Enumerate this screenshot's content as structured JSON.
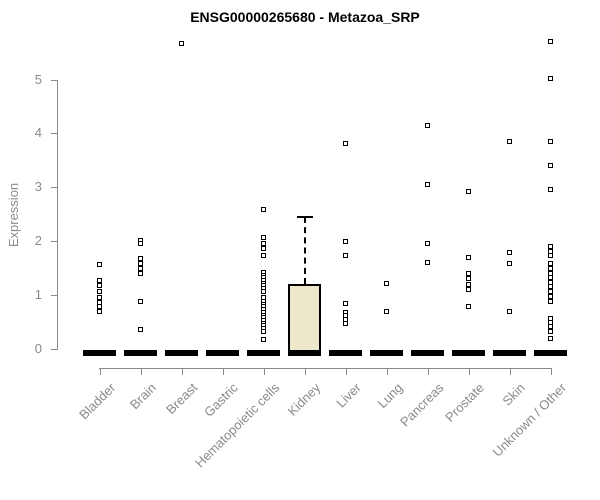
{
  "chart_data": {
    "type": "boxplot",
    "title": "ENSG00000265680 - Metazoa_SRP",
    "ylabel": "Expression",
    "xlabel": "",
    "ylim": [
      0,
      5.9
    ],
    "yticks": [
      0,
      1,
      2,
      3,
      4,
      5
    ],
    "grid": false,
    "legend": "none",
    "axis_color": "#8a8a8a",
    "box_fill_color": "#EDE7CB",
    "box_border_color": "#000000",
    "point_style": "open-square",
    "point_color": "#000000",
    "categories": [
      "Bladder",
      "Brain",
      "Breast",
      "Gastric",
      "Hematopoietic cells",
      "Kidney",
      "Liver",
      "Lung",
      "Pancreas",
      "Prostate",
      "Skin",
      "Unknown / Other"
    ],
    "series": [
      {
        "name": "Bladder",
        "box": {
          "q1": 0,
          "median": 0,
          "q3": 0
        },
        "points": [
          1.56,
          1.27,
          1.17,
          1.07,
          0.95,
          0.87,
          0.78,
          0.69
        ]
      },
      {
        "name": "Brain",
        "box": {
          "q1": 0,
          "median": 0,
          "q3": 0
        },
        "points": [
          2.02,
          1.95,
          1.68,
          1.59,
          1.5,
          1.41,
          0.88,
          0.36
        ]
      },
      {
        "name": "Breast",
        "box": {
          "q1": 0,
          "median": 0,
          "q3": 0
        },
        "points": [
          5.67
        ]
      },
      {
        "name": "Gastric",
        "box": {
          "q1": 0,
          "median": 0,
          "q3": 0
        },
        "points": []
      },
      {
        "name": "Hematopoietic cells",
        "box": {
          "q1": 0,
          "median": 0,
          "q3": 0
        },
        "points": [
          2.58,
          2.07,
          1.96,
          1.86,
          1.73,
          1.42,
          1.37,
          1.32,
          1.27,
          1.22,
          1.17,
          1.12,
          1.07,
          0.95,
          0.88,
          0.83,
          0.78,
          0.73,
          0.68,
          0.63,
          0.58,
          0.53,
          0.48,
          0.43,
          0.38,
          0.33,
          0.17
        ]
      },
      {
        "name": "Kidney",
        "box": {
          "q1": 0,
          "median": 0,
          "q3": 1.2,
          "whisker_high": 2.45,
          "whisker_style": "dashed"
        },
        "points": []
      },
      {
        "name": "Liver",
        "box": {
          "q1": 0,
          "median": 0,
          "q3": 0
        },
        "points": [
          3.81,
          1.99,
          1.74,
          0.84,
          0.68,
          0.62,
          0.55,
          0.48
        ]
      },
      {
        "name": "Lung",
        "box": {
          "q1": 0,
          "median": 0,
          "q3": 0
        },
        "points": [
          1.22,
          0.7
        ]
      },
      {
        "name": "Pancreas",
        "box": {
          "q1": 0,
          "median": 0,
          "q3": 0
        },
        "points": [
          4.14,
          3.06,
          1.95,
          1.6
        ]
      },
      {
        "name": "Prostate",
        "box": {
          "q1": 0,
          "median": 0,
          "q3": 0
        },
        "points": [
          2.93,
          1.69,
          1.41,
          1.3,
          1.2,
          1.1,
          0.78
        ]
      },
      {
        "name": "Skin",
        "box": {
          "q1": 0,
          "median": 0,
          "q3": 0
        },
        "points": [
          3.85,
          1.79,
          1.59,
          0.7
        ]
      },
      {
        "name": "Unknown / Other",
        "box": {
          "q1": 0,
          "median": 0,
          "q3": 0
        },
        "points": [
          5.7,
          5.02,
          3.85,
          3.41,
          2.96,
          1.9,
          1.81,
          1.73,
          1.59,
          1.5,
          1.41,
          1.33,
          1.24,
          1.16,
          1.06,
          0.97,
          0.88,
          0.57,
          0.49,
          0.41,
          0.33,
          0.19
        ]
      }
    ]
  }
}
